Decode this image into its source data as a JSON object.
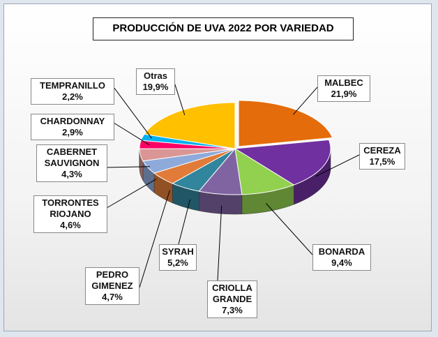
{
  "chart_data": {
    "type": "pie3d",
    "title": "PRODUCCIÓN DE UVA 2022 POR VARIEDAD",
    "categories": [
      "MALBEC",
      "CEREZA",
      "BONARDA",
      "CRIOLLA GRANDE",
      "SYRAH",
      "PEDRO GIMENEZ",
      "TORRONTES RIOJANO",
      "CABERNET SAUVIGNON",
      "CHARDONNAY",
      "TEMPRANILLO",
      "Otras"
    ],
    "values": [
      21.9,
      17.5,
      9.4,
      7.3,
      5.2,
      4.7,
      4.6,
      4.3,
      2.9,
      2.2,
      19.9
    ],
    "value_labels": [
      "21,9%",
      "17,5%",
      "9,4%",
      "7,3%",
      "5,2%",
      "4,7%",
      "4,6%",
      "4,3%",
      "2,9%",
      "2,2%",
      "19,9%"
    ],
    "colors": [
      "#e46c0a",
      "#7030a0",
      "#92d050",
      "#8064a2",
      "#31859c",
      "#e07b39",
      "#8eaadb",
      "#d99694",
      "#ff0066",
      "#00b0f0",
      "#ffc000"
    ]
  }
}
